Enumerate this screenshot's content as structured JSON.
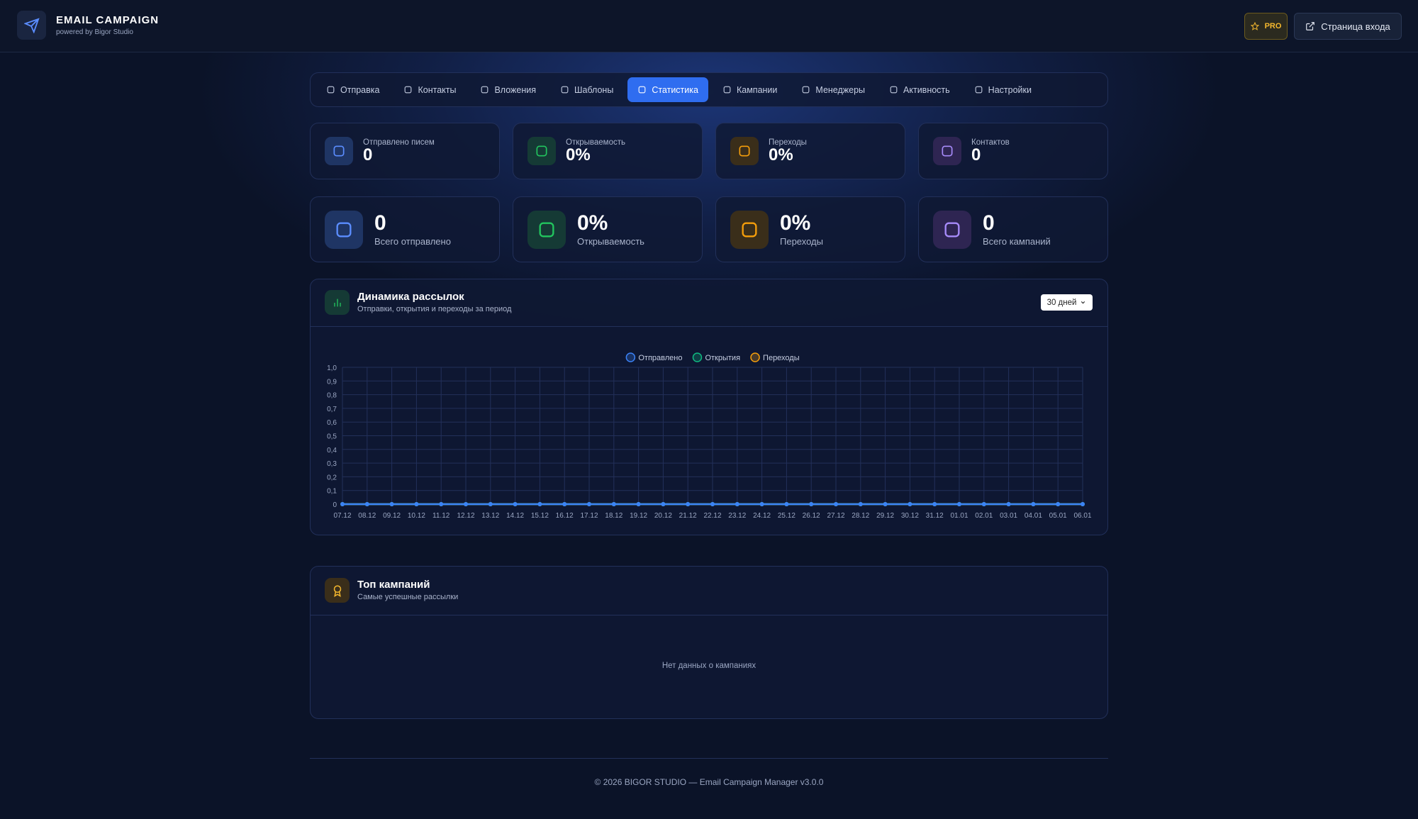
{
  "header": {
    "title": "EMAIL CAMPAIGN",
    "subtitle": "powered by Bigor Studio",
    "pro": "PRO",
    "login": "Страница входа"
  },
  "nav": {
    "tabs": [
      "Отправка",
      "Контакты",
      "Вложения",
      "Шаблоны",
      "Статистика",
      "Кампании",
      "Менеджеры",
      "Активность",
      "Настройки"
    ],
    "active": 4
  },
  "stats": [
    {
      "label": "Отправлено писем",
      "value": "0"
    },
    {
      "label": "Открываемость",
      "value": "0%"
    },
    {
      "label": "Переходы",
      "value": "0%"
    },
    {
      "label": "Контактов",
      "value": "0"
    }
  ],
  "summary": [
    {
      "value": "0",
      "label": "Всего отправлено"
    },
    {
      "value": "0%",
      "label": "Открываемость"
    },
    {
      "value": "0%",
      "label": "Переходы"
    },
    {
      "value": "0",
      "label": "Всего кампаний"
    }
  ],
  "chart_data": {
    "type": "line",
    "title": "Динамика рассылок",
    "subtitle": "Отправки, открытия и переходы за период",
    "period": "30 дней",
    "categories": [
      "07.12",
      "08.12",
      "09.12",
      "10.12",
      "11.12",
      "12.12",
      "13.12",
      "14.12",
      "15.12",
      "16.12",
      "17.12",
      "18.12",
      "19.12",
      "20.12",
      "21.12",
      "22.12",
      "23.12",
      "24.12",
      "25.12",
      "26.12",
      "27.12",
      "28.12",
      "29.12",
      "30.12",
      "31.12",
      "01.01",
      "02.01",
      "03.01",
      "04.01",
      "05.01",
      "06.01"
    ],
    "series": [
      {
        "name": "Отправлено",
        "color": "#3b82f6",
        "values": [
          0,
          0,
          0,
          0,
          0,
          0,
          0,
          0,
          0,
          0,
          0,
          0,
          0,
          0,
          0,
          0,
          0,
          0,
          0,
          0,
          0,
          0,
          0,
          0,
          0,
          0,
          0,
          0,
          0,
          0,
          0
        ]
      },
      {
        "name": "Открытия",
        "color": "#10b981",
        "values": [
          0,
          0,
          0,
          0,
          0,
          0,
          0,
          0,
          0,
          0,
          0,
          0,
          0,
          0,
          0,
          0,
          0,
          0,
          0,
          0,
          0,
          0,
          0,
          0,
          0,
          0,
          0,
          0,
          0,
          0,
          0
        ]
      },
      {
        "name": "Переходы",
        "color": "#f59e0b",
        "values": [
          0,
          0,
          0,
          0,
          0,
          0,
          0,
          0,
          0,
          0,
          0,
          0,
          0,
          0,
          0,
          0,
          0,
          0,
          0,
          0,
          0,
          0,
          0,
          0,
          0,
          0,
          0,
          0,
          0,
          0,
          0
        ]
      }
    ],
    "ylim": [
      0,
      1
    ],
    "yticks": [
      0,
      {
        "value": 0.1,
        "label": "0,1"
      },
      {
        "value": 0.2,
        "label": "0,2"
      },
      {
        "value": 0.3,
        "label": "0,3"
      },
      {
        "value": 0.4,
        "label": "0,4"
      },
      {
        "value": 0.5,
        "label": "0,5"
      },
      {
        "value": 0.6,
        "label": "0,6"
      },
      {
        "value": 0.7,
        "label": "0,7"
      },
      {
        "value": 0.8,
        "label": "0,8"
      },
      {
        "value": 0.9,
        "label": "0,9"
      },
      {
        "value": 1,
        "label": "1,0"
      }
    ],
    "grid": true,
    "legend": "top"
  },
  "top_campaigns": {
    "title": "Топ кампаний",
    "subtitle": "Самые успешные рассылки",
    "empty": "Нет данных о кампаниях"
  },
  "footer": "© 2026 BIGOR STUDIO — Email Campaign Manager v3.0.0"
}
